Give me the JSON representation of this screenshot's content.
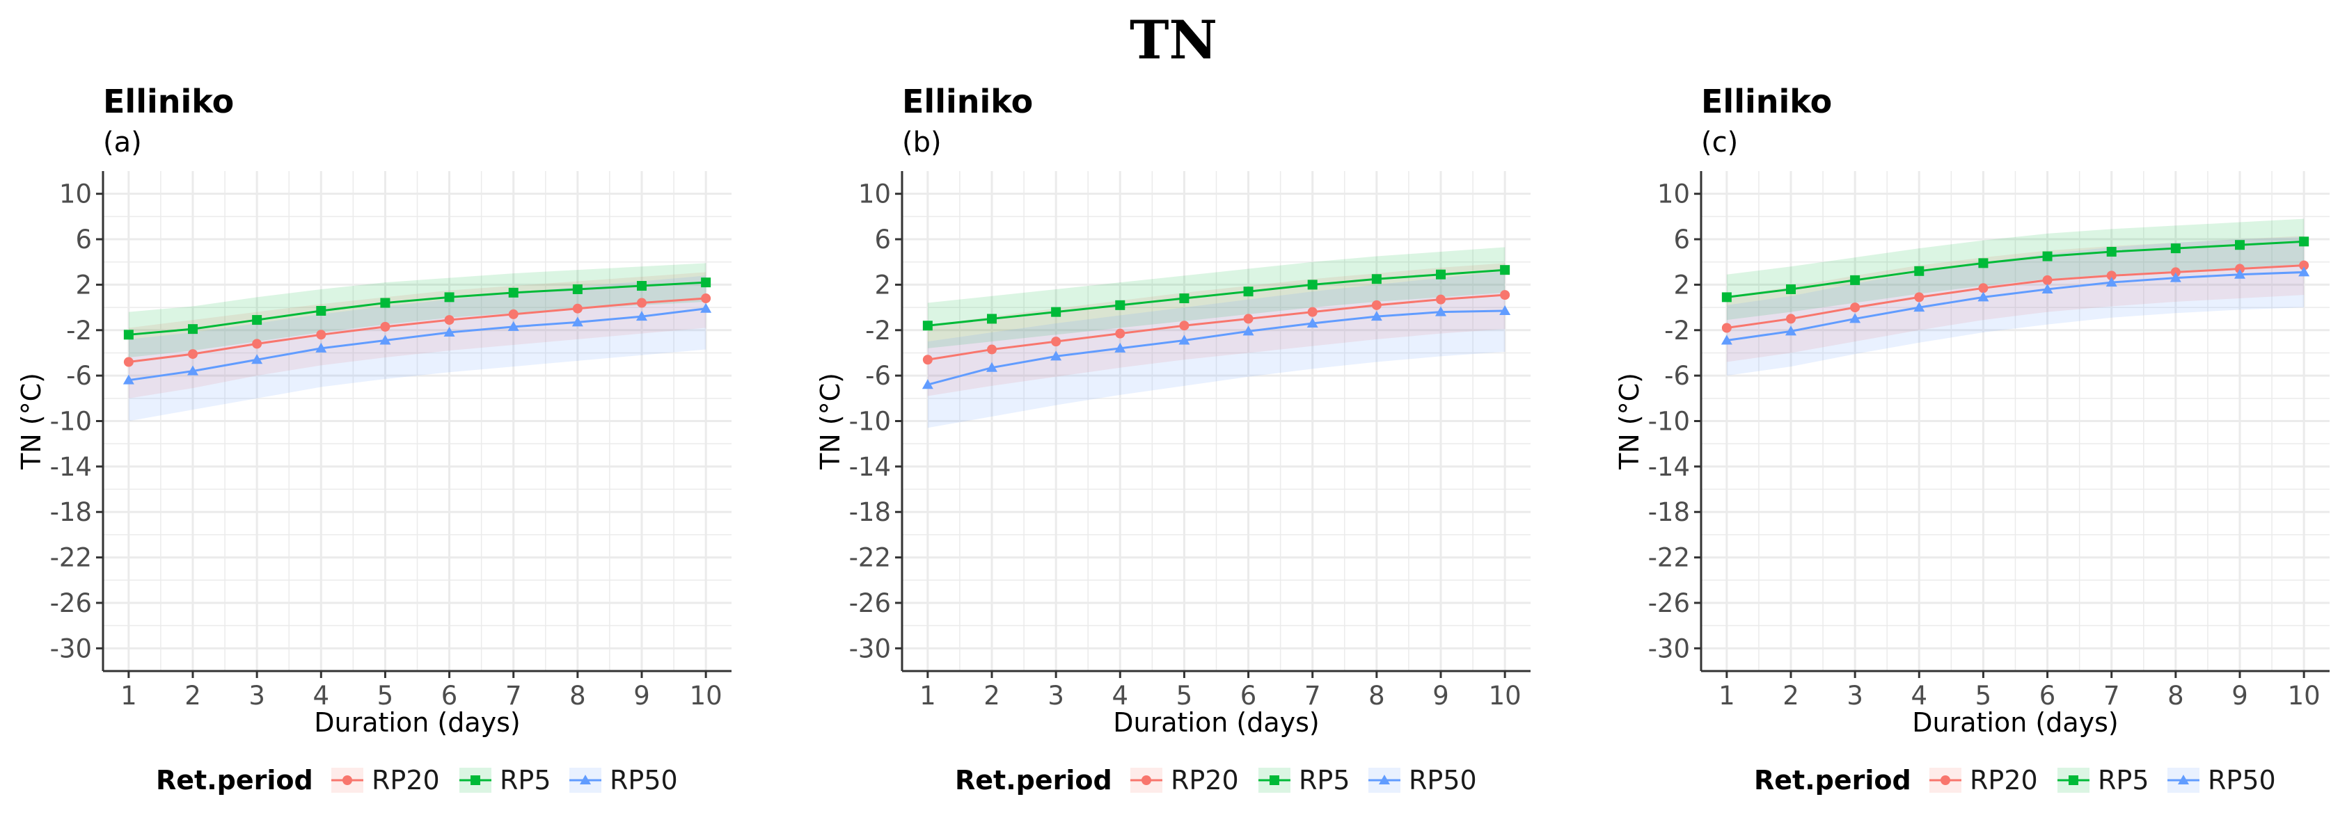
{
  "figure": {
    "title": "TN"
  },
  "colors": {
    "RP20": "#F8766D",
    "RP5": "#00BA38",
    "RP50": "#619CFF",
    "grid": "#ebebeb",
    "axis": "#333333"
  },
  "chart_data": [
    {
      "type": "line",
      "title": "Elliniko",
      "subtitle": "(a)",
      "xlabel": "Duration (days)",
      "ylabel": "TN (°C)",
      "x": [
        1,
        2,
        3,
        4,
        5,
        6,
        7,
        8,
        9,
        10
      ],
      "xlim": [
        0.6,
        10.4
      ],
      "ylim": [
        -32,
        12
      ],
      "yticks": [
        10,
        6,
        2,
        -2,
        -6,
        -10,
        -14,
        -18,
        -22,
        -26,
        -30
      ],
      "xticks": [
        1,
        2,
        3,
        4,
        5,
        6,
        7,
        8,
        9,
        10
      ],
      "legend": {
        "title": "Ret.period",
        "position": "bottom",
        "entries": [
          "RP20",
          "RP5",
          "RP50"
        ]
      },
      "series": [
        {
          "name": "RP20",
          "values": [
            -4.8,
            -4.1,
            -3.2,
            -2.4,
            -1.7,
            -1.1,
            -0.6,
            -0.1,
            0.4,
            0.8
          ],
          "lower": [
            -8.0,
            -7.1,
            -6.0,
            -5.1,
            -4.4,
            -3.8,
            -3.3,
            -2.8,
            -2.3,
            -1.8
          ],
          "upper": [
            -1.8,
            -1.1,
            -0.4,
            0.3,
            0.9,
            1.5,
            1.9,
            2.3,
            2.7,
            3.1
          ]
        },
        {
          "name": "RP5",
          "values": [
            -2.4,
            -1.9,
            -1.1,
            -0.3,
            0.4,
            0.9,
            1.3,
            1.6,
            1.9,
            2.2
          ],
          "lower": [
            -4.4,
            -3.8,
            -3.0,
            -2.2,
            -1.5,
            -0.9,
            -0.5,
            -0.1,
            0.2,
            0.5
          ],
          "upper": [
            -0.4,
            0.1,
            0.9,
            1.6,
            2.2,
            2.6,
            3.0,
            3.3,
            3.6,
            3.9
          ]
        },
        {
          "name": "RP50",
          "values": [
            -6.4,
            -5.6,
            -4.6,
            -3.6,
            -2.9,
            -2.2,
            -1.7,
            -1.3,
            -0.8,
            -0.1
          ],
          "lower": [
            -10.0,
            -9.0,
            -8.0,
            -7.0,
            -6.3,
            -5.7,
            -5.2,
            -4.7,
            -4.2,
            -3.7
          ],
          "upper": [
            -2.8,
            -2.2,
            -1.4,
            -0.6,
            0.1,
            0.7,
            1.3,
            1.8,
            2.3,
            2.8
          ]
        }
      ]
    },
    {
      "type": "line",
      "title": "Elliniko",
      "subtitle": "(b)",
      "xlabel": "Duration (days)",
      "ylabel": "TN (°C)",
      "x": [
        1,
        2,
        3,
        4,
        5,
        6,
        7,
        8,
        9,
        10
      ],
      "xlim": [
        0.6,
        10.4
      ],
      "ylim": [
        -32,
        12
      ],
      "yticks": [
        10,
        6,
        2,
        -2,
        -6,
        -10,
        -14,
        -18,
        -22,
        -26,
        -30
      ],
      "xticks": [
        1,
        2,
        3,
        4,
        5,
        6,
        7,
        8,
        9,
        10
      ],
      "legend": {
        "title": "Ret.period",
        "position": "bottom",
        "entries": [
          "RP20",
          "RP5",
          "RP50"
        ]
      },
      "series": [
        {
          "name": "RP20",
          "values": [
            -4.6,
            -3.7,
            -3.0,
            -2.3,
            -1.6,
            -1.0,
            -0.4,
            0.2,
            0.7,
            1.1
          ],
          "lower": [
            -7.8,
            -6.9,
            -6.1,
            -5.3,
            -4.6,
            -4.0,
            -3.4,
            -2.8,
            -2.3,
            -1.9
          ],
          "upper": [
            -1.6,
            -0.8,
            -0.1,
            0.6,
            1.3,
            1.9,
            2.5,
            3.0,
            3.5,
            3.9
          ]
        },
        {
          "name": "RP5",
          "values": [
            -1.6,
            -1.0,
            -0.4,
            0.2,
            0.8,
            1.4,
            2.0,
            2.5,
            2.9,
            3.3
          ],
          "lower": [
            -3.6,
            -3.0,
            -2.4,
            -1.8,
            -1.2,
            -0.6,
            0.0,
            0.5,
            0.9,
            1.3
          ],
          "upper": [
            0.4,
            1.0,
            1.6,
            2.2,
            2.8,
            3.4,
            4.0,
            4.5,
            4.9,
            5.3
          ]
        },
        {
          "name": "RP50",
          "values": [
            -6.8,
            -5.3,
            -4.3,
            -3.6,
            -2.9,
            -2.1,
            -1.4,
            -0.8,
            -0.4,
            -0.3
          ],
          "lower": [
            -10.6,
            -9.6,
            -8.6,
            -7.7,
            -6.9,
            -6.1,
            -5.4,
            -4.8,
            -4.3,
            -3.9
          ],
          "upper": [
            -3.0,
            -2.2,
            -1.4,
            -0.7,
            0.0,
            0.7,
            1.4,
            2.0,
            2.6,
            3.2
          ]
        }
      ]
    },
    {
      "type": "line",
      "title": "Elliniko",
      "subtitle": "(c)",
      "xlabel": "Duration (days)",
      "ylabel": "TN (°C)",
      "x": [
        1,
        2,
        3,
        4,
        5,
        6,
        7,
        8,
        9,
        10
      ],
      "xlim": [
        0.6,
        10.4
      ],
      "ylim": [
        -32,
        12
      ],
      "yticks": [
        10,
        6,
        2,
        -2,
        -6,
        -10,
        -14,
        -18,
        -22,
        -26,
        -30
      ],
      "xticks": [
        1,
        2,
        3,
        4,
        5,
        6,
        7,
        8,
        9,
        10
      ],
      "legend": {
        "title": "Ret.period",
        "position": "bottom",
        "entries": [
          "RP20",
          "RP5",
          "RP50"
        ]
      },
      "series": [
        {
          "name": "RP20",
          "values": [
            -1.8,
            -1.0,
            0.0,
            0.9,
            1.7,
            2.4,
            2.8,
            3.1,
            3.4,
            3.7
          ],
          "lower": [
            -4.8,
            -4.0,
            -3.0,
            -2.0,
            -1.1,
            -0.4,
            0.1,
            0.5,
            0.8,
            1.1
          ],
          "upper": [
            1.0,
            1.8,
            2.8,
            3.7,
            4.4,
            5.0,
            5.4,
            5.7,
            6.0,
            6.3
          ]
        },
        {
          "name": "RP5",
          "values": [
            0.9,
            1.6,
            2.4,
            3.2,
            3.9,
            4.5,
            4.9,
            5.2,
            5.5,
            5.8
          ],
          "lower": [
            -1.1,
            -0.4,
            0.4,
            1.2,
            1.9,
            2.5,
            2.9,
            3.2,
            3.5,
            3.8
          ],
          "upper": [
            2.9,
            3.6,
            4.4,
            5.2,
            5.9,
            6.5,
            6.9,
            7.2,
            7.5,
            7.8
          ]
        },
        {
          "name": "RP50",
          "values": [
            -2.9,
            -2.1,
            -1.0,
            0.0,
            0.9,
            1.6,
            2.2,
            2.6,
            2.9,
            3.1
          ],
          "lower": [
            -6.0,
            -5.2,
            -4.1,
            -3.1,
            -2.2,
            -1.5,
            -0.9,
            -0.5,
            -0.2,
            0.0
          ],
          "upper": [
            0.2,
            1.0,
            2.1,
            3.1,
            4.0,
            4.7,
            5.3,
            5.7,
            6.0,
            6.2
          ]
        }
      ]
    }
  ]
}
